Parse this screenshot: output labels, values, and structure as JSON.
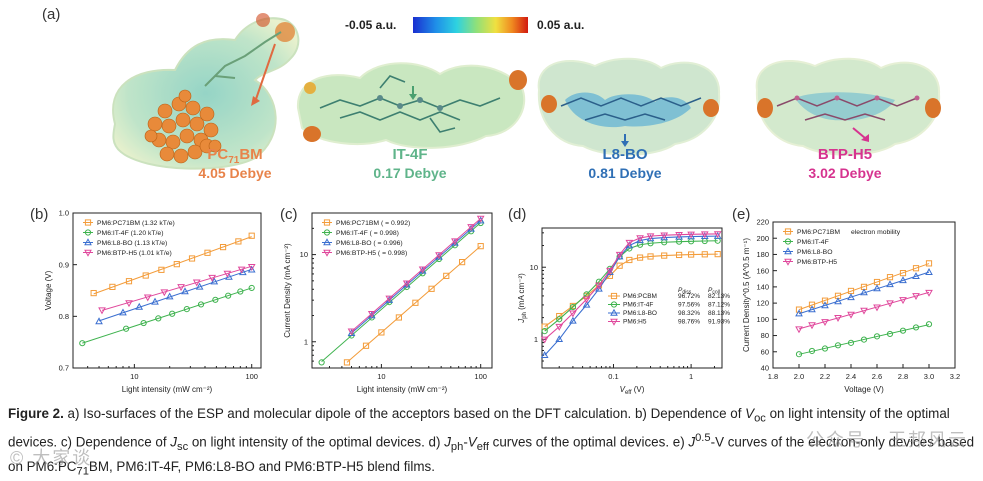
{
  "panel_a": {
    "label": "(a)",
    "colorbar": {
      "min_label": "-0.05 a.u.",
      "max_label": "0.05 a.u."
    },
    "molecules": [
      {
        "name_main": "PC",
        "name_sub": "71",
        "name_tail": "BM",
        "debye": "4.05 Debye",
        "color": "#e8834a"
      },
      {
        "name_main": "IT-4F",
        "name_sub": "",
        "name_tail": "",
        "debye": "0.17 Debye",
        "color": "#5fb48a"
      },
      {
        "name_main": "L8-BO",
        "name_sub": "",
        "name_tail": "",
        "debye": "0.81 Debye",
        "color": "#2f6fb5"
      },
      {
        "name_main": "BTP-H5",
        "name_sub": "",
        "name_tail": "",
        "debye": "3.02 Debye",
        "color": "#d6338f"
      }
    ]
  },
  "colors": {
    "pcbm": "#f39c3a",
    "it4f": "#3fb34f",
    "l8bo": "#3b6fd0",
    "h5": "#e0489c"
  },
  "chart_data": [
    {
      "id": "b",
      "label": "(b)",
      "type": "scatter",
      "xlabel": "Light intensity (mW cm⁻²)",
      "ylabel": "Voltage (V)",
      "xscale": "log",
      "xlim": [
        3,
        120
      ],
      "ylim": [
        0.7,
        1.0
      ],
      "xticks": [
        {
          "v": 10,
          "t": "10"
        },
        {
          "v": 100,
          "t": "100"
        }
      ],
      "yticks": [
        {
          "v": 0.7,
          "t": "0.7"
        },
        {
          "v": 0.8,
          "t": "0.8"
        },
        {
          "v": 0.9,
          "t": "0.9"
        },
        {
          "v": 1.0,
          "t": "1.0"
        }
      ],
      "legend": "top-left",
      "series": [
        {
          "name": "PM6:PC71BM (1.32 kT/e)",
          "color": "pcbm",
          "marker": "square",
          "x": [
            4.5,
            6.5,
            9,
            12.5,
            17,
            23,
            31,
            42,
            57,
            77,
            100
          ],
          "y": [
            0.845,
            0.857,
            0.868,
            0.879,
            0.89,
            0.901,
            0.912,
            0.923,
            0.934,
            0.945,
            0.956
          ]
        },
        {
          "name": "PM6:IT-4F (1.20 kT/e)",
          "color": "it4f",
          "marker": "circle",
          "x": [
            3.6,
            8.5,
            12,
            16,
            21,
            28,
            37,
            49,
            63,
            80,
            100
          ],
          "y": [
            0.748,
            0.776,
            0.787,
            0.796,
            0.805,
            0.814,
            0.823,
            0.832,
            0.84,
            0.848,
            0.855
          ]
        },
        {
          "name": "PM6:L8-BO (1.13 kT/e)",
          "color": "l8bo",
          "marker": "triangle-up",
          "x": [
            5,
            8,
            11,
            15,
            20,
            27,
            36,
            48,
            64,
            84,
            100
          ],
          "y": [
            0.79,
            0.807,
            0.818,
            0.828,
            0.838,
            0.848,
            0.857,
            0.867,
            0.876,
            0.885,
            0.89
          ]
        },
        {
          "name": "PM6:BTP-H5 (1.01 kT/e)",
          "color": "h5",
          "marker": "triangle-down",
          "x": [
            5.3,
            9,
            13,
            18,
            25,
            34,
            46,
            62,
            82,
            100
          ],
          "y": [
            0.812,
            0.826,
            0.837,
            0.847,
            0.857,
            0.866,
            0.875,
            0.883,
            0.891,
            0.896
          ]
        }
      ]
    },
    {
      "id": "c",
      "label": "(c)",
      "type": "scatter",
      "xlabel": "Light intensity (mW cm⁻²)",
      "ylabel": "Current Density (mA cm⁻²)",
      "xscale": "log",
      "yscale": "log",
      "xlim": [
        2,
        130
      ],
      "ylim": [
        0.5,
        30
      ],
      "xticks": [
        {
          "v": 10,
          "t": "10"
        },
        {
          "v": 100,
          "t": "100"
        }
      ],
      "yticks": [
        {
          "v": 1,
          "t": "1"
        },
        {
          "v": 10,
          "t": "10"
        }
      ],
      "legend": "top-left",
      "series": [
        {
          "name": "PM6:PC71BM (   = 0.992)",
          "color": "pcbm",
          "marker": "square",
          "x": [
            4.5,
            7,
            10,
            15,
            22,
            32,
            45,
            65,
            100
          ],
          "y": [
            0.58,
            0.9,
            1.28,
            1.9,
            2.8,
            4.05,
            5.7,
            8.2,
            12.5
          ]
        },
        {
          "name": "PM6:IT-4F (   = 0.998)",
          "color": "it4f",
          "marker": "circle",
          "x": [
            2.5,
            5,
            8,
            12,
            18,
            26,
            38,
            55,
            80,
            100
          ],
          "y": [
            0.58,
            1.18,
            1.9,
            2.85,
            4.25,
            6.1,
            8.9,
            12.8,
            18.5,
            23
          ]
        },
        {
          "name": "PM6:L8-BO (   = 0.996)",
          "color": "l8bo",
          "marker": "triangle-up",
          "x": [
            5,
            8,
            12,
            18,
            26,
            38,
            55,
            80,
            100
          ],
          "y": [
            1.25,
            2.0,
            3.0,
            4.5,
            6.5,
            9.4,
            13.6,
            19.7,
            24.5
          ]
        },
        {
          "name": "PM6:BTP-H5 (   = 0.998)",
          "color": "h5",
          "marker": "triangle-down",
          "x": [
            5,
            8,
            12,
            18,
            26,
            38,
            55,
            80,
            100
          ],
          "y": [
            1.32,
            2.1,
            3.15,
            4.7,
            6.8,
            9.9,
            14.3,
            20.8,
            26
          ]
        }
      ]
    },
    {
      "id": "d",
      "label": "(d)",
      "type": "line",
      "xlabel": "V_eff (V)",
      "ylabel": "J_ph (mA cm⁻²)",
      "xscale": "log",
      "yscale": "log",
      "xlim": [
        0.012,
        2.5
      ],
      "ylim": [
        0.4,
        35
      ],
      "xticks": [
        {
          "v": 0.1,
          "t": "0.1"
        },
        {
          "v": 1,
          "t": "1"
        }
      ],
      "yticks": [
        {
          "v": 1,
          "t": "1"
        },
        {
          "v": 10,
          "t": "10"
        }
      ],
      "legend": "bottom-right",
      "legend_headers": [
        "P_diss",
        "P_coll"
      ],
      "series": [
        {
          "name": "PM6:PCBM",
          "color": "pcbm",
          "marker": "square",
          "p_diss": "96.72%",
          "p_coll": "82.13%",
          "x": [
            0.013,
            0.02,
            0.03,
            0.045,
            0.065,
            0.09,
            0.12,
            0.16,
            0.22,
            0.3,
            0.45,
            0.7,
            1.0,
            1.5,
            2.2
          ],
          "y": [
            1.5,
            2.1,
            2.9,
            4.0,
            5.6,
            7.6,
            10.5,
            12.6,
            13.6,
            14.1,
            14.5,
            14.8,
            15.0,
            15.1,
            15.2
          ]
        },
        {
          "name": "PM6:IT-4F",
          "color": "it4f",
          "marker": "circle",
          "p_diss": "97.56%",
          "p_coll": "87.12%",
          "x": [
            0.013,
            0.02,
            0.03,
            0.045,
            0.065,
            0.09,
            0.12,
            0.16,
            0.22,
            0.3,
            0.45,
            0.7,
            1.0,
            1.5,
            2.2
          ],
          "y": [
            1.3,
            1.9,
            2.8,
            4.2,
            6.3,
            9.5,
            14.0,
            18.2,
            20.5,
            21.5,
            22.2,
            22.6,
            22.9,
            23.1,
            23.3
          ]
        },
        {
          "name": "PM6:L8-BO",
          "color": "l8bo",
          "marker": "triangle-up",
          "p_diss": "98.32%",
          "p_coll": "88.13%",
          "x": [
            0.013,
            0.02,
            0.03,
            0.045,
            0.065,
            0.09,
            0.12,
            0.16,
            0.22,
            0.3,
            0.45,
            0.7,
            1.0,
            1.5,
            2.2
          ],
          "y": [
            0.6,
            1.0,
            1.8,
            3.0,
            5.0,
            8.5,
            14.0,
            20.0,
            23.5,
            25.0,
            25.8,
            26.3,
            26.6,
            26.8,
            27.0
          ]
        },
        {
          "name": "PM6:H5",
          "color": "h5",
          "marker": "triangle-down",
          "p_diss": "98.76%",
          "p_coll": "91.93%",
          "x": [
            0.013,
            0.02,
            0.03,
            0.045,
            0.065,
            0.09,
            0.12,
            0.16,
            0.22,
            0.3,
            0.45,
            0.7,
            1.0,
            1.5,
            2.2
          ],
          "y": [
            1.0,
            1.5,
            2.3,
            3.6,
            5.6,
            9.0,
            15.0,
            22.0,
            25.5,
            27.0,
            27.8,
            28.3,
            28.6,
            28.8,
            29.0
          ]
        }
      ]
    },
    {
      "id": "e",
      "label": "(e)",
      "type": "scatter",
      "xlabel": "Voltage (V)",
      "ylabel": "Current Density^0.5 (A^0.5 m⁻¹)",
      "xscale": "linear",
      "yscale": "linear",
      "xlim": [
        1.8,
        3.2
      ],
      "ylim": [
        40,
        220
      ],
      "xticks": [
        {
          "v": 1.8,
          "t": "1.8"
        },
        {
          "v": 2.0,
          "t": "2.0"
        },
        {
          "v": 2.2,
          "t": "2.2"
        },
        {
          "v": 2.4,
          "t": "2.4"
        },
        {
          "v": 2.6,
          "t": "2.6"
        },
        {
          "v": 2.8,
          "t": "2.8"
        },
        {
          "v": 3.0,
          "t": "3.0"
        },
        {
          "v": 3.2,
          "t": "3.2"
        }
      ],
      "yticks": [
        {
          "v": 40,
          "t": "40"
        },
        {
          "v": 60,
          "t": "60"
        },
        {
          "v": 80,
          "t": "80"
        },
        {
          "v": 100,
          "t": "100"
        },
        {
          "v": 120,
          "t": "120"
        },
        {
          "v": 140,
          "t": "140"
        },
        {
          "v": 160,
          "t": "160"
        },
        {
          "v": 180,
          "t": "180"
        },
        {
          "v": 200,
          "t": "200"
        },
        {
          "v": 220,
          "t": "220"
        }
      ],
      "legend": "top-left",
      "annotation": "electron mobility",
      "series": [
        {
          "name": "PM6:PC71BM",
          "color": "pcbm",
          "marker": "square",
          "x": [
            2.0,
            2.1,
            2.2,
            2.3,
            2.4,
            2.5,
            2.6,
            2.7,
            2.8,
            2.9,
            3.0
          ],
          "y": [
            112,
            118,
            123,
            129,
            135,
            140,
            146,
            152,
            157,
            163,
            169
          ]
        },
        {
          "name": "PM6:IT-4F",
          "color": "it4f",
          "marker": "circle",
          "x": [
            2.0,
            2.1,
            2.2,
            2.3,
            2.4,
            2.5,
            2.6,
            2.7,
            2.8,
            2.9,
            3.0
          ],
          "y": [
            57,
            61,
            64,
            68,
            71,
            75,
            79,
            82,
            86,
            90,
            94
          ]
        },
        {
          "name": "PM6:L8-BO",
          "color": "l8bo",
          "marker": "triangle-up",
          "x": [
            2.0,
            2.1,
            2.2,
            2.3,
            2.4,
            2.5,
            2.6,
            2.7,
            2.8,
            2.9,
            3.0
          ],
          "y": [
            107,
            112,
            117,
            122,
            127,
            133,
            138,
            143,
            148,
            153,
            158
          ]
        },
        {
          "name": "PM6:BTP-H5",
          "color": "h5",
          "marker": "triangle-down",
          "x": [
            2.0,
            2.1,
            2.2,
            2.3,
            2.4,
            2.5,
            2.6,
            2.7,
            2.8,
            2.9,
            3.0
          ],
          "y": [
            88,
            93,
            97,
            102,
            106,
            111,
            115,
            120,
            124,
            129,
            133
          ]
        }
      ]
    }
  ],
  "caption": {
    "lead": "Figure 2.",
    "t1": " a) Iso-surfaces of the ESP and molecular dipole of the acceptors based on the DFT calculation. b) Dependence of ",
    "voc_main": "V",
    "voc_sub": "oc",
    "t2": " on light intensity of the optimal devices. c) Dependence of ",
    "jsc_main": "J",
    "jsc_sub": "sc",
    "t3": " on light intensity of the optimal devices. d) ",
    "jph_main": "J",
    "jph_sub": "ph",
    "dash": "-",
    "veff_main": "V",
    "veff_sub": "eff",
    "t4": " curves of the optimal devices. e) ",
    "j05_main": "J",
    "j05_sup": "0.5",
    "t5": "-V curves of the electron-only devices based on PM6:PC",
    "pc_sub": "71",
    "t6": "BM, PM6:IT-4F, PM6:L8-BO and PM6:BTP-H5 blend films."
  },
  "watermark": {
    "left": "© 大家谈",
    "right": "公众号 · 王邦风云"
  }
}
